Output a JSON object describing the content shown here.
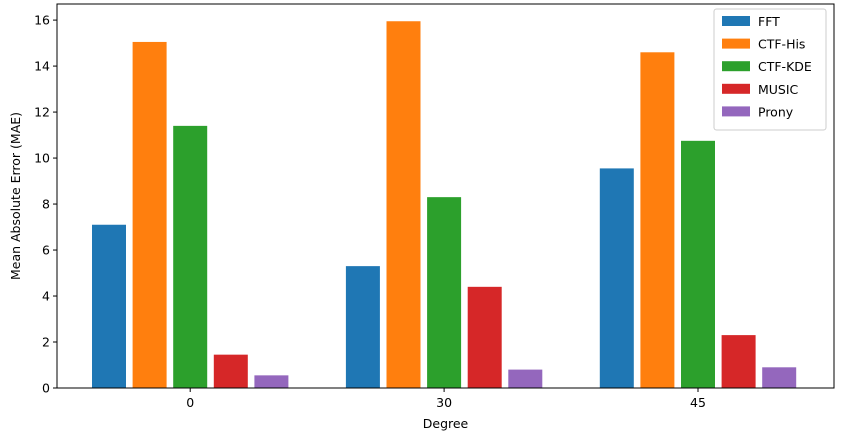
{
  "chart_data": {
    "type": "bar",
    "title": "",
    "xlabel": "Degree",
    "ylabel": "Mean Absolute Error (MAE)",
    "categories": [
      "0",
      "30",
      "45"
    ],
    "ylim": [
      0,
      16.7
    ],
    "yticks": [
      0,
      2,
      4,
      6,
      8,
      10,
      12,
      14,
      16
    ],
    "grid": false,
    "legend_position": "top-right",
    "series": [
      {
        "name": "FFT",
        "color": "#1f77b4",
        "values": [
          7.1,
          5.3,
          9.55
        ]
      },
      {
        "name": "CTF-His",
        "color": "#ff7f0e",
        "values": [
          15.05,
          15.95,
          14.6
        ]
      },
      {
        "name": "CTF-KDE",
        "color": "#2ca02c",
        "values": [
          11.4,
          8.3,
          10.75
        ]
      },
      {
        "name": "MUSIC",
        "color": "#d62728",
        "values": [
          1.45,
          4.4,
          2.3
        ]
      },
      {
        "name": "Prony",
        "color": "#9467bd",
        "values": [
          0.55,
          0.8,
          0.9
        ]
      }
    ]
  }
}
